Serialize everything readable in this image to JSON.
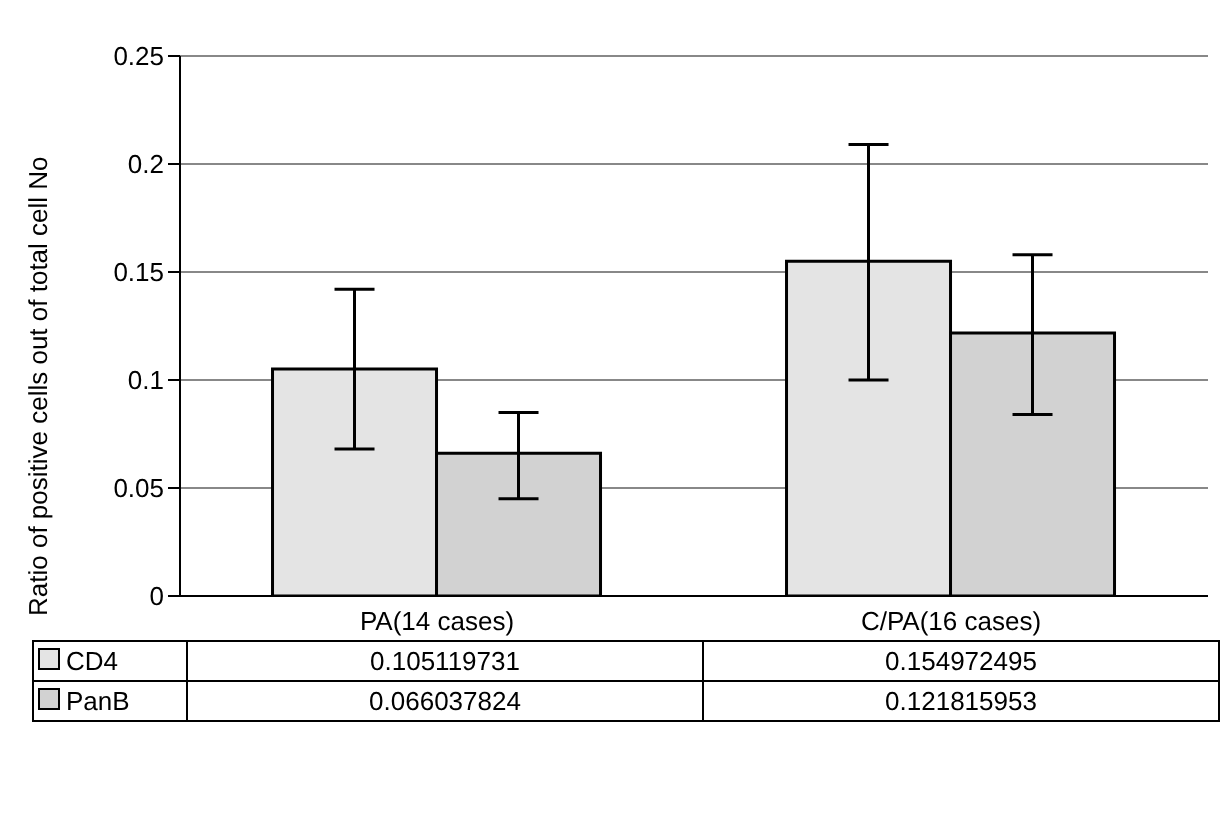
{
  "chart_data": {
    "type": "bar",
    "ylabel": "Ratio of positive cells out of total cell No",
    "categories": [
      "PA(14 cases)",
      "C/PA(16 cases)"
    ],
    "series": [
      {
        "name": "CD4",
        "color": "#e4e4e4",
        "values": [
          0.105119731,
          0.154972495
        ],
        "errors": [
          [
            0.068,
            0.142
          ],
          [
            0.1,
            0.209
          ]
        ]
      },
      {
        "name": "PanB",
        "color": "#d2d2d2",
        "values": [
          0.066037824,
          0.121815953
        ],
        "errors": [
          [
            0.045,
            0.085
          ],
          [
            0.084,
            0.158
          ]
        ]
      }
    ],
    "ylim": [
      0,
      0.25
    ],
    "yticks": [
      0,
      0.05,
      0.1,
      0.15,
      0.2,
      0.25
    ],
    "grid": "y",
    "legend": "bottom",
    "data_labels": true
  }
}
